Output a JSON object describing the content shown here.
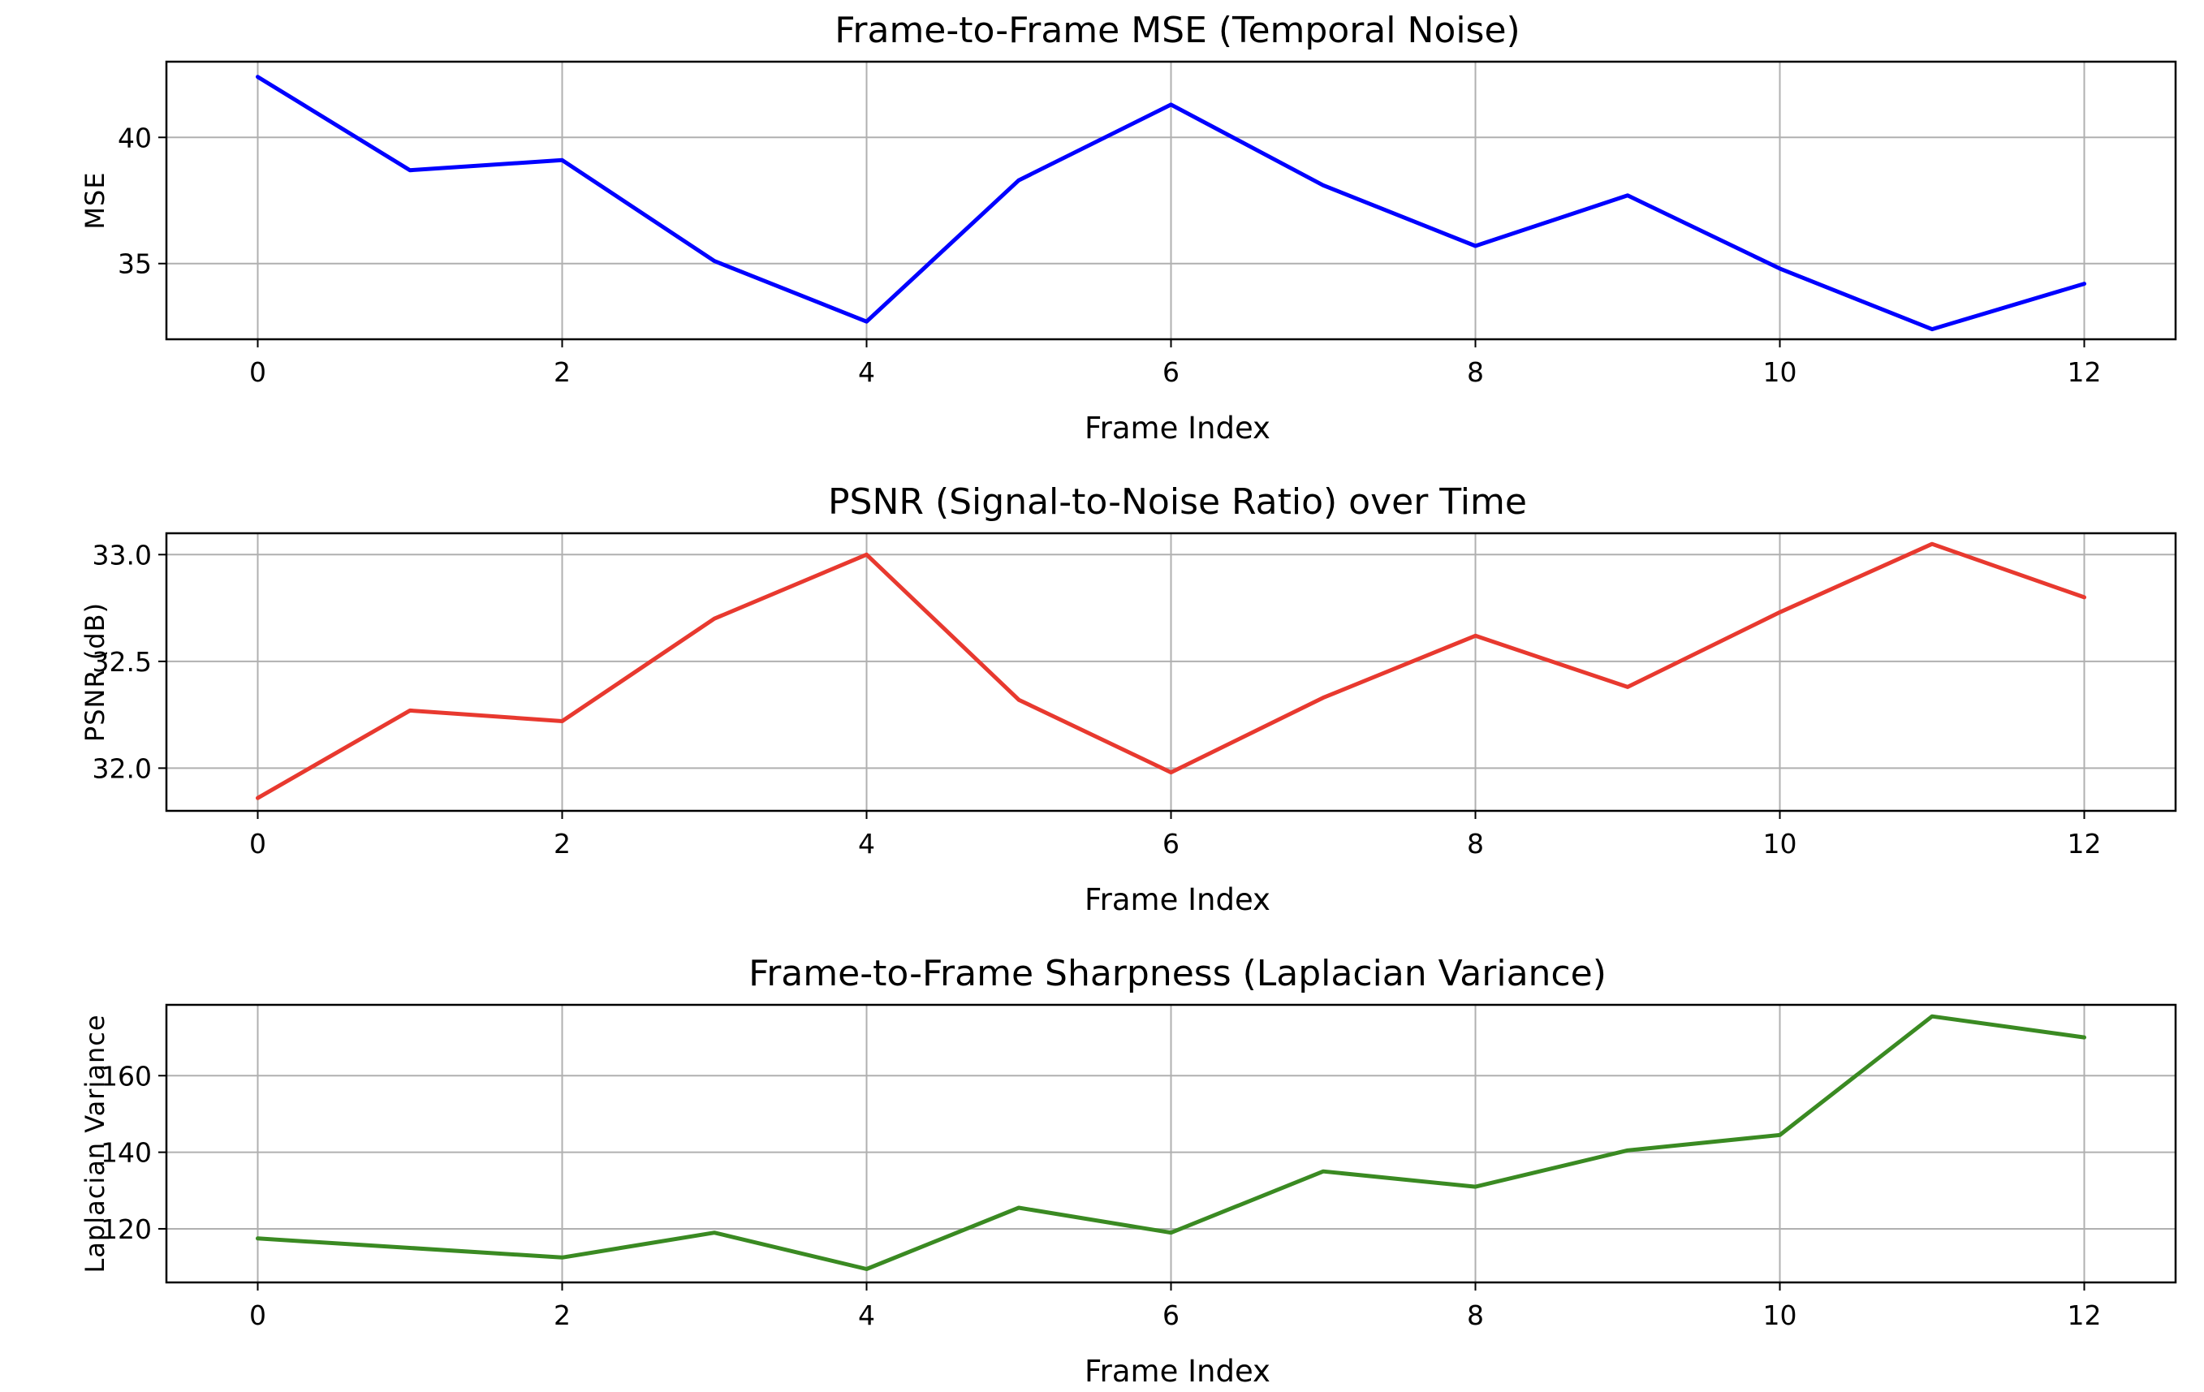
{
  "chart_data": [
    {
      "type": "line",
      "title": "Frame-to-Frame MSE (Temporal Noise)",
      "xlabel": "Frame Index",
      "ylabel": "MSE",
      "x": [
        0,
        1,
        2,
        3,
        4,
        5,
        6,
        7,
        8,
        9,
        10,
        11,
        12
      ],
      "series": [
        {
          "values": [
            42.4,
            38.7,
            39.1,
            35.1,
            32.7,
            38.3,
            41.3,
            38.1,
            35.7,
            37.7,
            34.8,
            32.4,
            34.2
          ],
          "color": "#0000ff"
        }
      ],
      "xticks": [
        0,
        2,
        4,
        6,
        8,
        10,
        12
      ],
      "xtick_labels": [
        "0",
        "2",
        "4",
        "6",
        "8",
        "10",
        "12"
      ],
      "yticks": [
        35,
        40
      ],
      "ytick_labels": [
        "35",
        "40"
      ],
      "xlim": [
        -0.6,
        12.6
      ],
      "ylim": [
        32.0,
        43.0
      ],
      "grid": true,
      "legend": "none"
    },
    {
      "type": "line",
      "title": "PSNR (Signal-to-Noise Ratio) over Time",
      "xlabel": "Frame Index",
      "ylabel": "PSNR (dB)",
      "x": [
        0,
        1,
        2,
        3,
        4,
        5,
        6,
        7,
        8,
        9,
        10,
        11,
        12
      ],
      "series": [
        {
          "values": [
            31.86,
            32.27,
            32.22,
            32.7,
            33.0,
            32.32,
            31.98,
            32.33,
            32.62,
            32.38,
            32.73,
            33.05,
            32.8
          ],
          "color": "#e8392f"
        }
      ],
      "xticks": [
        0,
        2,
        4,
        6,
        8,
        10,
        12
      ],
      "xtick_labels": [
        "0",
        "2",
        "4",
        "6",
        "8",
        "10",
        "12"
      ],
      "yticks": [
        32.0,
        32.5,
        33.0
      ],
      "ytick_labels": [
        "32.0",
        "32.5",
        "33.0"
      ],
      "xlim": [
        -0.6,
        12.6
      ],
      "ylim": [
        31.8,
        33.1
      ],
      "grid": true,
      "legend": "none"
    },
    {
      "type": "line",
      "title": "Frame-to-Frame Sharpness (Laplacian Variance)",
      "xlabel": "Frame Index",
      "ylabel": "Laplacian Variance",
      "x": [
        0,
        1,
        2,
        3,
        4,
        5,
        6,
        7,
        8,
        9,
        10,
        11,
        12
      ],
      "series": [
        {
          "values": [
            117.5,
            115.0,
            112.5,
            119.0,
            109.5,
            125.5,
            119.0,
            135.0,
            131.0,
            140.5,
            144.5,
            175.5,
            170.0
          ],
          "color": "#3a8a22"
        }
      ],
      "xticks": [
        0,
        2,
        4,
        6,
        8,
        10,
        12
      ],
      "xtick_labels": [
        "0",
        "2",
        "4",
        "6",
        "8",
        "10",
        "12"
      ],
      "yticks": [
        120,
        140,
        160
      ],
      "ytick_labels": [
        "120",
        "140",
        "160"
      ],
      "xlim": [
        -0.6,
        12.6
      ],
      "ylim": [
        106.0,
        178.5
      ],
      "grid": true,
      "legend": "none"
    }
  ]
}
